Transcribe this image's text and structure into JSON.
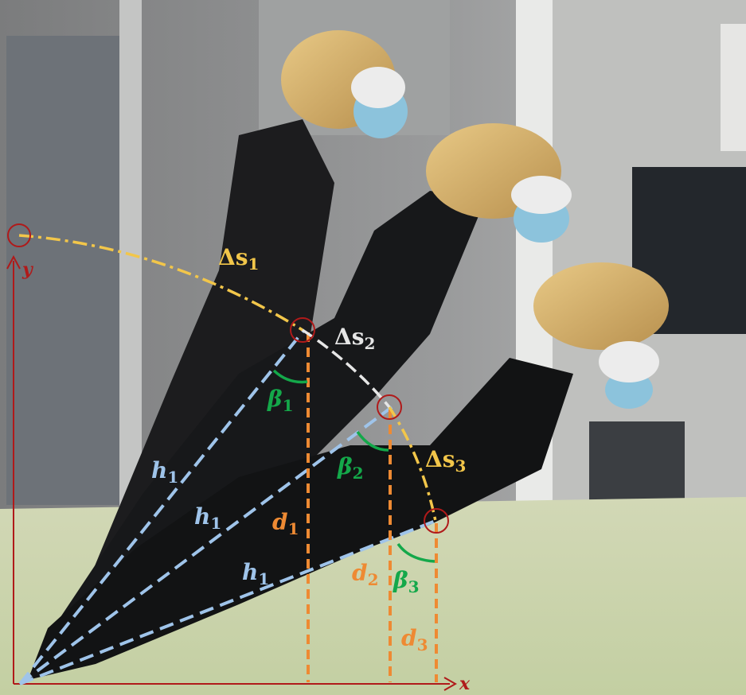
{
  "colors": {
    "axis": "#b01a1a",
    "marker": "#b01a1a",
    "trajectory_1": "#f2c64a",
    "trajectory_2": "#e6e6e6",
    "trajectory_3": "#f2c64a",
    "hypotenuse": "#9fc4ea",
    "height": "#ee8a33",
    "angle": "#14a84a"
  },
  "labels": {
    "axis_x": "x",
    "axis_y": "y",
    "ds1": "Δs",
    "ds1_sub": "1",
    "ds2": "Δs",
    "ds2_sub": "2",
    "ds3": "Δs",
    "ds3_sub": "3",
    "h1_a": "h",
    "h1_a_sub": "1",
    "h1_b": "h",
    "h1_b_sub": "1",
    "h1_c": "h",
    "h1_c_sub": "1",
    "d1": "d",
    "d1_sub": "1",
    "d2": "d",
    "d2_sub": "2",
    "d3": "d",
    "d3_sub": "3",
    "beta1": "β",
    "beta1_sub": "1",
    "beta2": "β",
    "beta2_sub": "2",
    "beta3": "β",
    "beta3_sub": "3"
  }
}
